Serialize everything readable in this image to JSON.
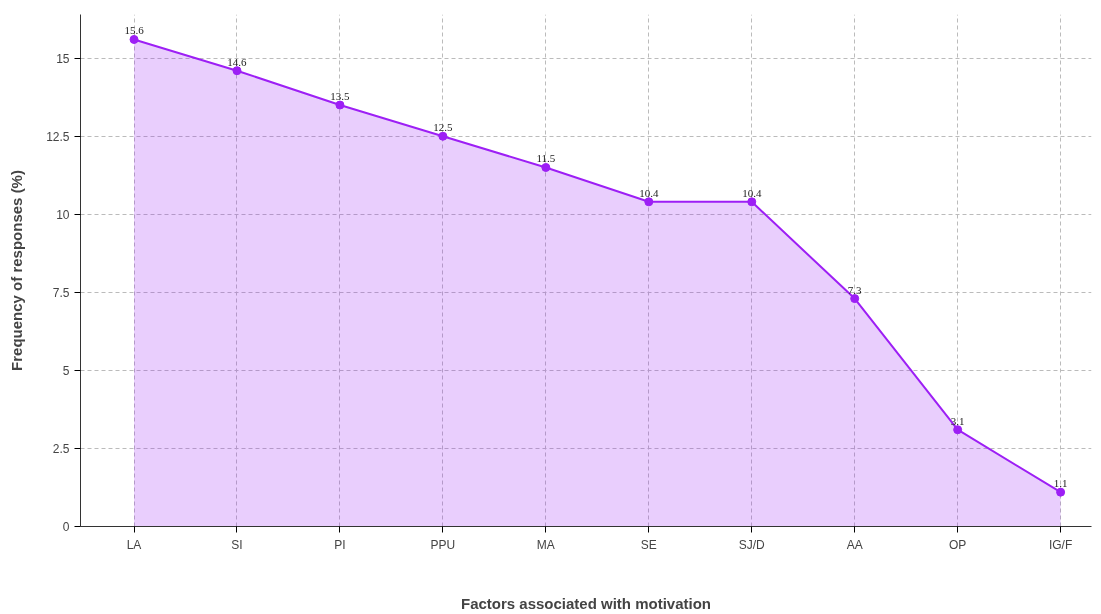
{
  "chart_data": {
    "type": "area",
    "xlabel": "Factors associated with motivation",
    "ylabel": "Frequency of responses (%)",
    "categories": [
      "LA",
      "SI",
      "PI",
      "PPU",
      "MA",
      "SE",
      "SJ/D",
      "AA",
      "OP",
      "IG/F"
    ],
    "series": [
      {
        "color": "#9d1ff5",
        "values": [
          15.6,
          14.6,
          13.5,
          12.5,
          11.5,
          10.4,
          10.4,
          7.3,
          3.1,
          1.1
        ]
      }
    ],
    "ylim": [
      0,
      16.4
    ],
    "yticks": [
      0,
      2.5,
      5,
      7.5,
      10,
      12.5,
      15
    ],
    "grid": true,
    "marker": "circle",
    "line_style": "solid",
    "data_labels": true
  }
}
